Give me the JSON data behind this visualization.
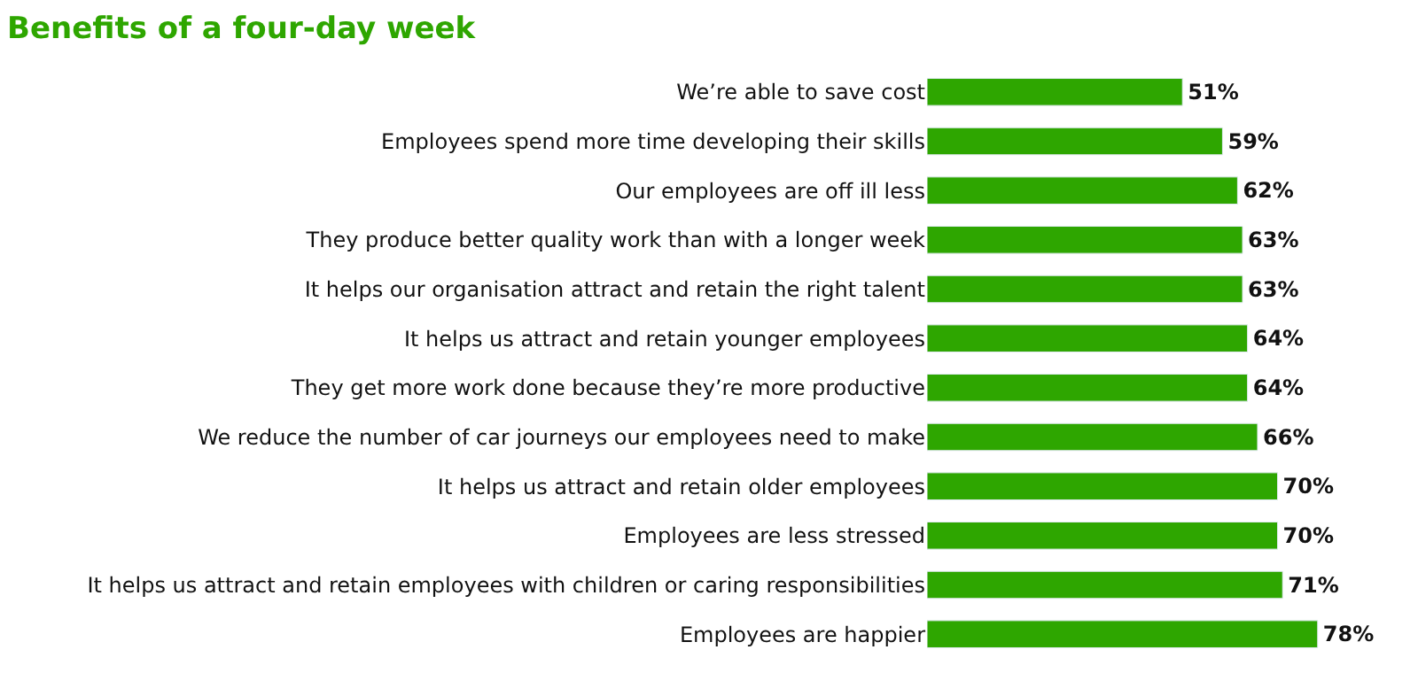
{
  "chart_data": {
    "type": "bar",
    "orientation": "horizontal",
    "title": "Benefits of a four-day week",
    "categories": [
      "We’re able to save cost",
      "Employees spend more time developing their skills",
      "Our employees are off ill less",
      "They produce better quality work than with a longer week",
      "It helps our organisation attract and retain the right talent",
      "It helps us attract and retain younger employees",
      "They get more work done because they’re more productive",
      "We reduce the number of car journeys our employees need to make",
      "It helps us attract and retain older employees",
      "Employees are less stressed",
      "It helps us attract and retain employees with children or caring responsibilities",
      "Employees are happier"
    ],
    "values": [
      51,
      59,
      62,
      63,
      63,
      64,
      64,
      66,
      70,
      70,
      71,
      78
    ],
    "value_labels": [
      "51%",
      "59%",
      "62%",
      "63%",
      "63%",
      "64%",
      "64%",
      "66%",
      "70%",
      "70%",
      "71%",
      "78%"
    ],
    "color": "#2ea600"
  }
}
